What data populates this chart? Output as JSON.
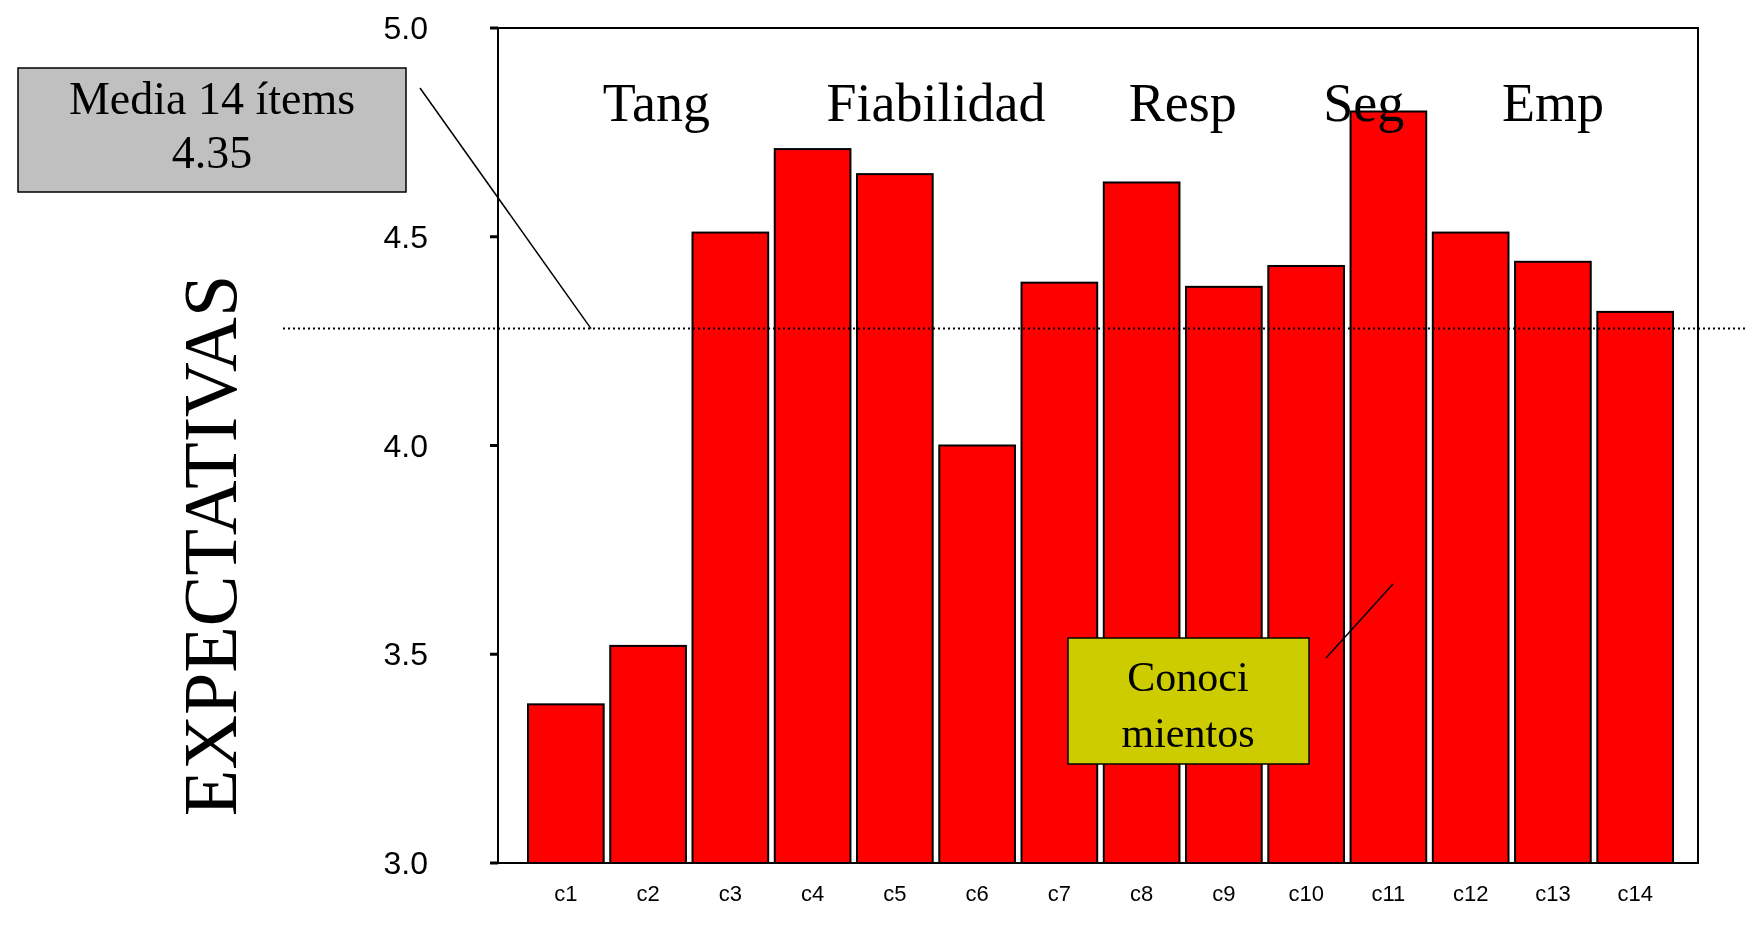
{
  "chart_data": {
    "type": "bar",
    "ylabel": "EXPECTATIVAS",
    "categories": [
      "c1",
      "c2",
      "c3",
      "c4",
      "c5",
      "c6",
      "c7",
      "c8",
      "c9",
      "c10",
      "c11",
      "c12",
      "c13",
      "c14"
    ],
    "values": [
      3.38,
      3.52,
      4.51,
      4.71,
      4.65,
      4.0,
      4.39,
      4.63,
      4.38,
      4.43,
      4.8,
      4.51,
      4.44,
      4.32
    ],
    "color": "#ff0000",
    "ylim": [
      3.0,
      5.0
    ],
    "yticks": [
      {
        "value": 3.0,
        "label": "3.0"
      },
      {
        "value": 3.5,
        "label": "3.5"
      },
      {
        "value": 4.0,
        "label": "4.0"
      },
      {
        "value": 4.5,
        "label": "4.5"
      },
      {
        "value": 5.0,
        "label": "5.0"
      }
    ],
    "grid": false,
    "ref_lines": [
      {
        "axis": "y",
        "value": 4.28,
        "label": "Media 14 ítems\n4.35",
        "line_style": "dotted",
        "color": "#000000"
      }
    ],
    "annotations": [
      "Tang",
      "Fiabilidad",
      "Resp",
      "Seg",
      "Emp",
      "Conoci\nmientos"
    ]
  }
}
